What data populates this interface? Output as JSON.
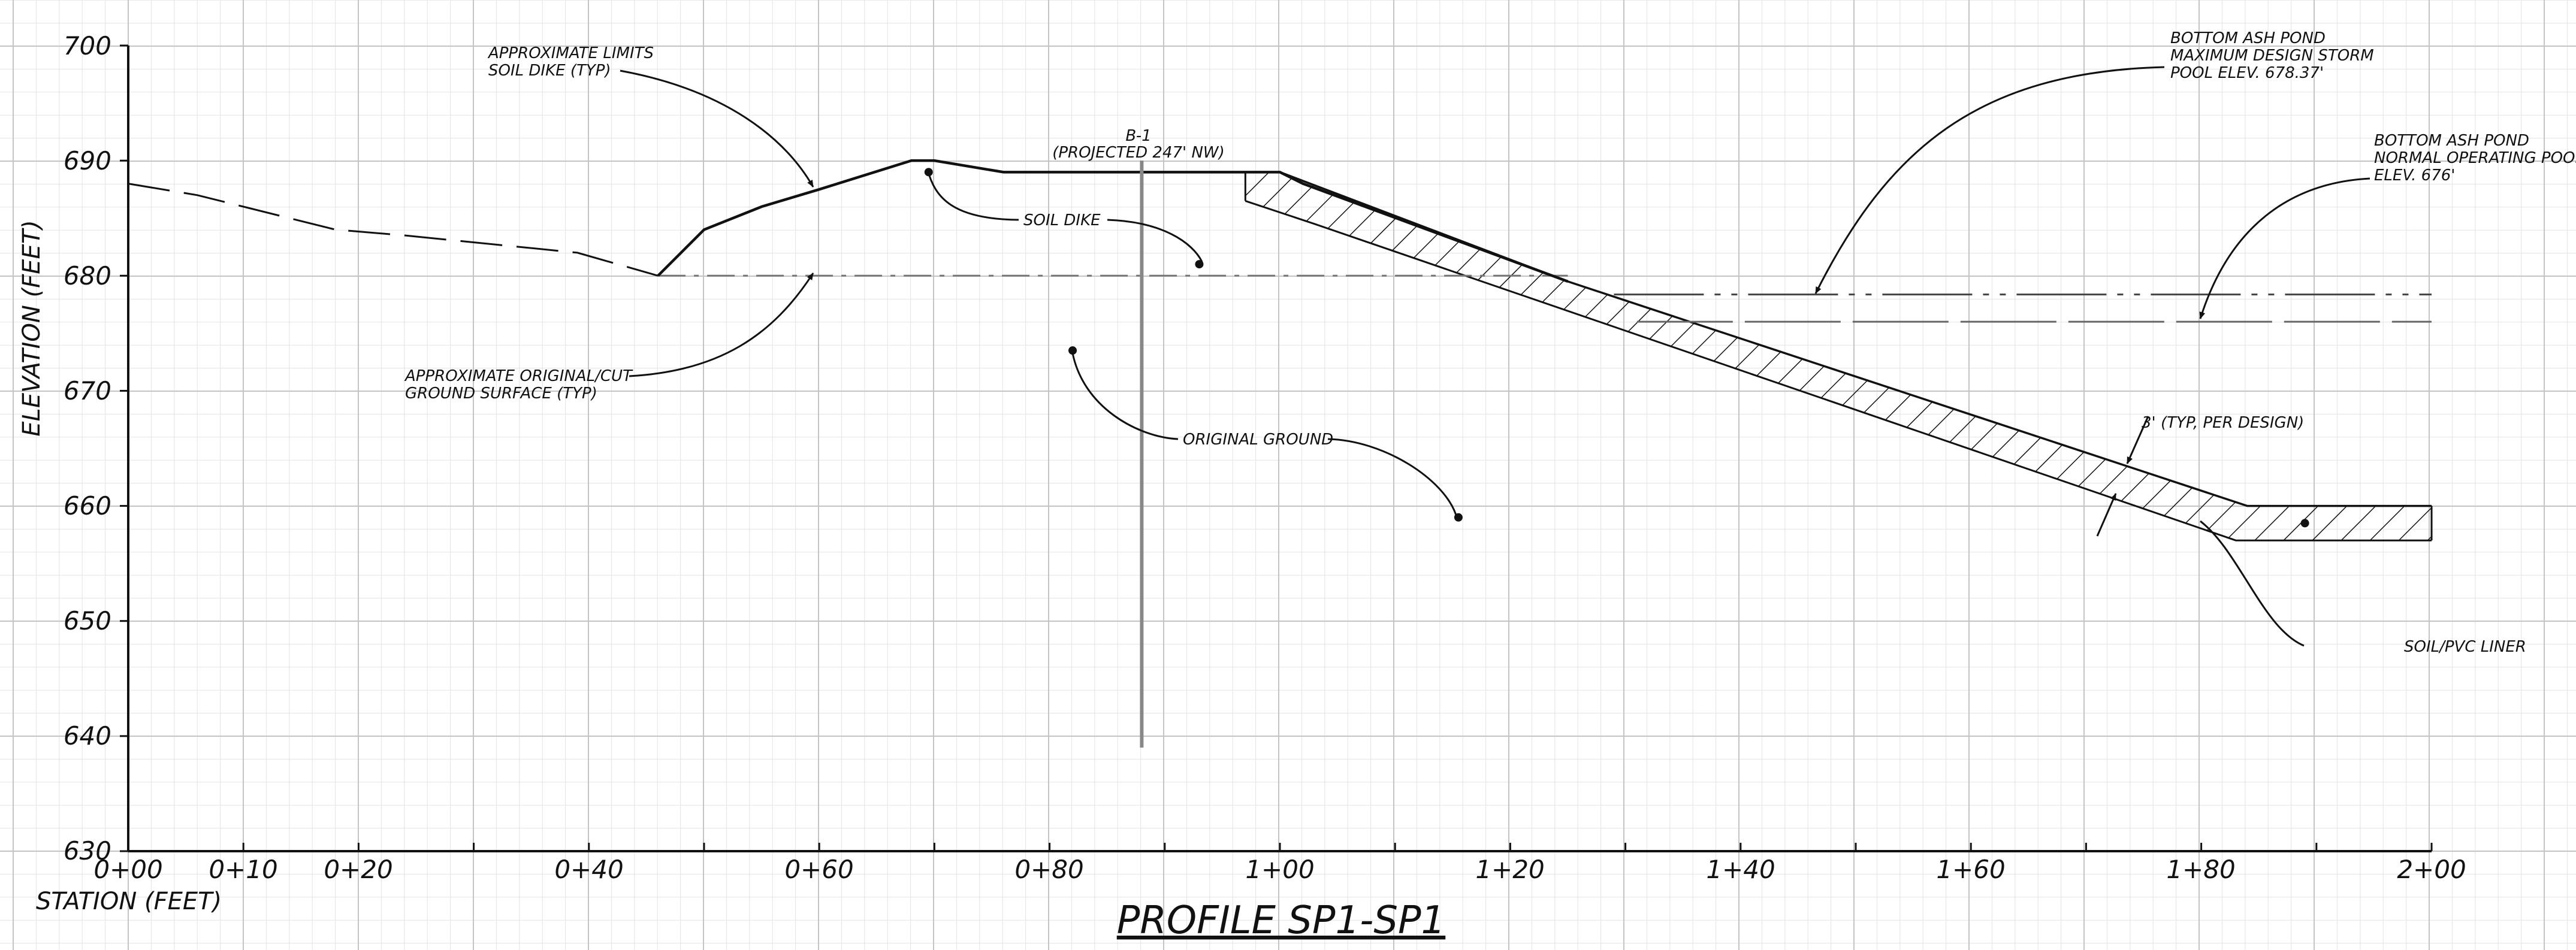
{
  "drawing": {
    "title": "PROFILE SP1-SP1",
    "y_axis_label": "ELEVATION (FEET)",
    "x_axis_label": "STATION (FEET)",
    "y_ticks": [
      "700",
      "690",
      "680",
      "670",
      "660",
      "650",
      "640",
      "630"
    ],
    "x_ticks": [
      "0+00",
      "0+10",
      "0+20",
      "0+40",
      "0+60",
      "0+80",
      "1+00",
      "1+20",
      "1+40",
      "1+60",
      "1+80",
      "2+00"
    ],
    "annotations": {
      "soil_dike_limits": [
        "APPROXIMATE LIMITS",
        "SOIL DIKE (TYP)"
      ],
      "boring": [
        "B-1",
        "(PROJECTED 247' NW)"
      ],
      "soil_dike": "SOIL DIKE",
      "original_cut_ground": [
        "APPROXIMATE ORIGINAL/CUT",
        "GROUND SURFACE (TYP)"
      ],
      "original_ground": "ORIGINAL GROUND",
      "max_storm_pool": [
        "BOTTOM ASH POND",
        "MAXIMUM DESIGN STORM",
        "POOL ELEV. 678.37'"
      ],
      "normal_pool": [
        "BOTTOM ASH POND",
        "NORMAL OPERATING POOL",
        "ELEV. 676'"
      ],
      "liner_thickness": "3' (TYP, PER DESIGN)",
      "liner": "SOIL/PVC LINER"
    }
  },
  "chart_data": {
    "type": "line",
    "title": "PROFILE SP1-SP1",
    "xlabel": "STATION (FEET)",
    "ylabel": "ELEVATION (FEET)",
    "xlim": [
      0,
      200
    ],
    "ylim": [
      630,
      700
    ],
    "grid": true,
    "series": [
      {
        "id": "original-ground",
        "x": [
          0,
          6,
          10,
          18,
          24,
          39,
          46
        ],
        "y": [
          688,
          687,
          686,
          684,
          683.5,
          682,
          680
        ]
      },
      {
        "id": "soil-dike",
        "x": [
          46,
          50,
          55,
          60,
          68,
          70,
          76,
          100,
          102,
          125
        ],
        "y": [
          680,
          684,
          686,
          687.5,
          690,
          690,
          689,
          689,
          688,
          679.5
        ]
      },
      {
        "id": "cut-ground",
        "x": [
          46,
          125
        ],
        "y": [
          680,
          680
        ]
      },
      {
        "id": "liner-top",
        "x": [
          97,
          100,
          125,
          184,
          200
        ],
        "y": [
          689,
          689,
          679.5,
          660,
          660
        ]
      },
      {
        "id": "liner-bottom",
        "x": [
          97,
          103,
          183,
          200
        ],
        "y": [
          686.5,
          684.5,
          657,
          657
        ]
      },
      {
        "id": "max-design-storm-pool",
        "x": [
          129,
          200
        ],
        "y": [
          678.37,
          678.37
        ]
      },
      {
        "id": "normal-operating-pool",
        "x": [
          131,
          200
        ],
        "y": [
          676,
          676
        ]
      },
      {
        "id": "boring-b1",
        "x": [
          88,
          88
        ],
        "y": [
          690,
          639
        ]
      }
    ],
    "annotation_points": [
      {
        "label": "SOIL DIKE",
        "x": 69.5,
        "y": 689
      },
      {
        "label": "SOIL DIKE",
        "x": 93,
        "y": 681
      },
      {
        "label": "ORIGINAL GROUND",
        "x": 82,
        "y": 673.5
      },
      {
        "label": "ORIGINAL GROUND",
        "x": 115.5,
        "y": 659
      },
      {
        "label": "SOIL/PVC LINER",
        "x": 189,
        "y": 658.5
      }
    ]
  }
}
